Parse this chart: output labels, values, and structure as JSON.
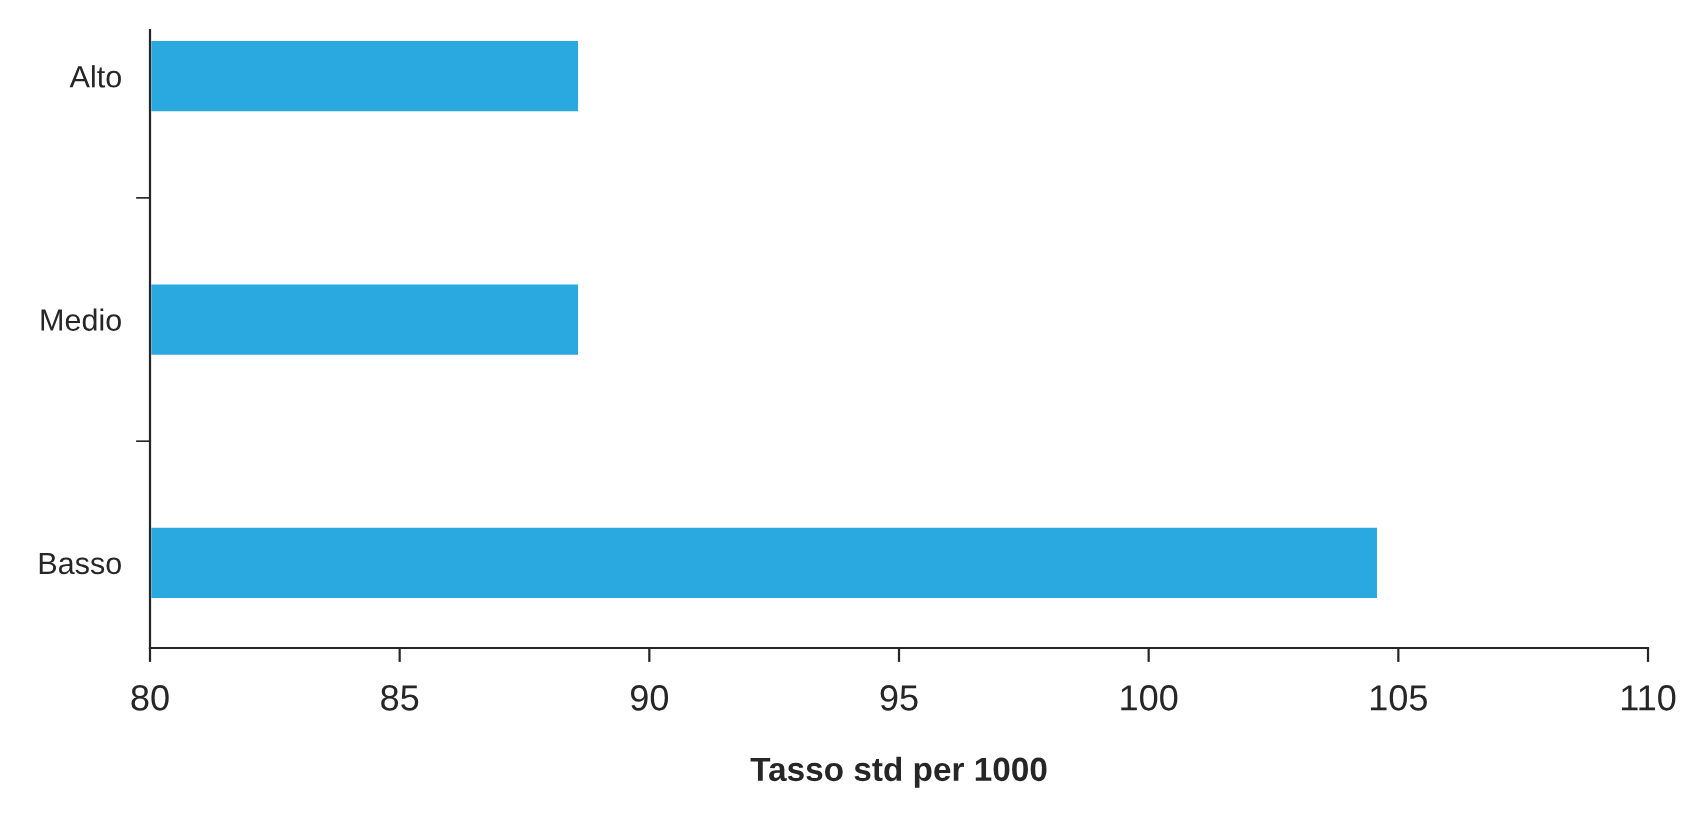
{
  "chart_data": {
    "type": "bar",
    "orientation": "horizontal",
    "xlabel": "Tasso std per 1000",
    "categories": [
      "Alto",
      "Medio",
      "Basso"
    ],
    "values": [
      88.6,
      88.6,
      104.6
    ],
    "color": "#29a9e0",
    "xlim": [
      80,
      110
    ],
    "xticks": [
      80,
      85,
      90,
      95,
      100,
      105,
      110
    ],
    "grid": false,
    "legend": false
  }
}
